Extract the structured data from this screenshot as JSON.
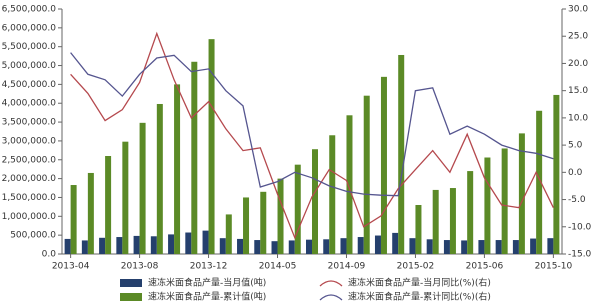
{
  "chart_data": {
    "type": "bar-line",
    "categories": [
      "2013-04",
      null,
      null,
      null,
      "2013-08",
      null,
      null,
      null,
      "2013-12",
      null,
      null,
      null,
      "2014-05",
      null,
      null,
      null,
      "2014-09",
      null,
      null,
      null,
      "2015-02",
      null,
      null,
      null,
      "2015-06",
      null,
      null,
      null,
      "2015-10"
    ],
    "series": [
      {
        "name": "速冻米面食品产量-当月值(吨)",
        "type": "bar",
        "color": "#25406d",
        "values": [
          400000,
          360000,
          430000,
          450000,
          480000,
          470000,
          520000,
          570000,
          620000,
          420000,
          400000,
          370000,
          340000,
          360000,
          380000,
          390000,
          420000,
          450000,
          490000,
          560000,
          420000,
          390000,
          370000,
          360000,
          370000,
          370000,
          370000,
          410000,
          420000
        ]
      },
      {
        "name": "速冻米面食品产量-累计值(吨)",
        "type": "bar",
        "color": "#5b8a26",
        "values": [
          1830000,
          2150000,
          2600000,
          2980000,
          3480000,
          3980000,
          4500000,
          5100000,
          5700000,
          1050000,
          1500000,
          1650000,
          2000000,
          2370000,
          2780000,
          3150000,
          3680000,
          4200000,
          4700000,
          5280000,
          1300000,
          1700000,
          1750000,
          2200000,
          2560000,
          2800000,
          3200000,
          3800000,
          4220000
        ]
      },
      {
        "name": "速冻米面食品产量-当月同比(%)(右)",
        "type": "line",
        "axis": "y2",
        "color": "#b5494e",
        "values": [
          18,
          14.5,
          9.5,
          11.5,
          16.5,
          25.5,
          17,
          10,
          13,
          8,
          4,
          4.5,
          -4,
          -12,
          -4.5,
          0.5,
          -1.5,
          -10,
          -8,
          -3,
          0.5,
          4,
          0,
          7,
          -1,
          -6,
          -6.5,
          0,
          -6.5
        ]
      },
      {
        "name": "速冻米面食品产量-累计同比(%)(右)",
        "type": "line",
        "axis": "y2",
        "color": "#55558f",
        "values": [
          22,
          18,
          17,
          14,
          18,
          21,
          21.5,
          18.5,
          19,
          15,
          12.2,
          -2.7,
          -1.7,
          0,
          -1,
          -2.5,
          -3.5,
          -4,
          -4.2,
          -4.3,
          15,
          15.5,
          7,
          8.5,
          7,
          5,
          4,
          3.5,
          2.5
        ]
      }
    ],
    "ylim": [
      0,
      6500000
    ],
    "yticks": [
      {
        "value": 0,
        "label": "0.0"
      },
      {
        "value": 500000,
        "label": "500,000.0"
      },
      {
        "value": 1000000,
        "label": "1,000,000.0"
      },
      {
        "value": 1500000,
        "label": "1,500,000.0"
      },
      {
        "value": 2000000,
        "label": "2,000,000.0"
      },
      {
        "value": 2500000,
        "label": "2,500,000.0"
      },
      {
        "value": 3000000,
        "label": "3,000,000.0"
      },
      {
        "value": 3500000,
        "label": "3,500,000.0"
      },
      {
        "value": 4000000,
        "label": "4,000,000.0"
      },
      {
        "value": 4500000,
        "label": "4,500,000.0"
      },
      {
        "value": 5000000,
        "label": "5,000,000.0"
      },
      {
        "value": 5500000,
        "label": "5,500,000.0"
      },
      {
        "value": 6000000,
        "label": "6,000,000.0"
      },
      {
        "value": 6500000,
        "label": "6,500,000.0"
      }
    ],
    "y2lim": [
      -15,
      30
    ],
    "y2ticks": [
      {
        "value": -15,
        "label": "-15.0"
      },
      {
        "value": -10,
        "label": "-10.0"
      },
      {
        "value": -5,
        "label": "-5.0"
      },
      {
        "value": 0,
        "label": "0.0"
      },
      {
        "value": 5,
        "label": "5.0"
      },
      {
        "value": 10,
        "label": "10.0"
      },
      {
        "value": 15,
        "label": "15.0"
      },
      {
        "value": 20,
        "label": "20.0"
      },
      {
        "value": 25,
        "label": "25.0"
      },
      {
        "value": 30,
        "label": "30.0"
      }
    ],
    "grid": false,
    "legend": "bottom"
  }
}
